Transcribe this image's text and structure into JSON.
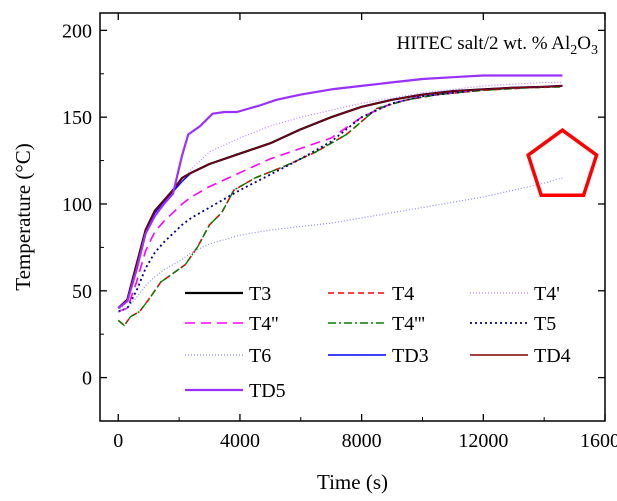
{
  "chart_data": {
    "type": "line",
    "title": "",
    "annotation": {
      "main": "HITEC salt/2 wt. % Al",
      "sub": "2",
      "mid": "O",
      "sub2": "3"
    },
    "xlabel": "Time (s)",
    "ylabel": "Temperature (°C)",
    "xlim": [
      -600,
      16000
    ],
    "ylim": [
      -25,
      210
    ],
    "xticks": [
      0,
      4000,
      8000,
      12000,
      16000
    ],
    "yticks": [
      0,
      50,
      100,
      150,
      200
    ],
    "xtick_labels": [
      "0",
      "4000",
      "8000",
      "12000",
      "16000"
    ],
    "ytick_labels": [
      "0",
      "50",
      "100",
      "150",
      "200"
    ],
    "grid": false,
    "legend_position": "bottom-left, 3 columns",
    "series": [
      {
        "name": "T3",
        "color": "#000000",
        "dash": "",
        "width": 2.2,
        "x": [
          0,
          300,
          600,
          900,
          1200,
          1500,
          1800,
          2100,
          2400,
          3000,
          4000,
          5000,
          6000,
          7000,
          8000,
          9000,
          10000,
          11000,
          12000,
          13000,
          14000,
          14600
        ],
        "y": [
          40,
          45,
          65,
          85,
          96,
          102,
          108,
          115,
          118,
          123,
          129,
          135,
          143,
          150,
          156,
          160,
          163,
          165,
          166,
          167,
          167.5,
          168
        ]
      },
      {
        "name": "T4",
        "color": "#ff0000",
        "dash": "6,4",
        "width": 1.6,
        "x": [
          0,
          200,
          400,
          700,
          1000,
          1400,
          1800,
          2200,
          2600,
          3000,
          3400,
          3800,
          4500,
          5500,
          6500,
          7500,
          8500,
          9500,
          10500,
          12000,
          13500,
          14600
        ],
        "y": [
          33,
          30,
          35,
          38,
          45,
          55,
          60,
          65,
          75,
          88,
          95,
          108,
          115,
          122,
          130,
          140,
          155,
          160,
          163,
          165.5,
          167,
          167.5
        ]
      },
      {
        "name": "T4'",
        "color": "#c080ff",
        "dash": "1,2",
        "width": 1.2,
        "x": [
          0,
          300,
          600,
          900,
          1200,
          1500,
          1800,
          2100,
          2400,
          3000,
          4000,
          5000,
          6000,
          7000,
          8000,
          9000,
          10000,
          11000,
          12000,
          13000,
          14000,
          14600
        ],
        "y": [
          38,
          44,
          64,
          84,
          95,
          101,
          107,
          113,
          120,
          130,
          138,
          145,
          150,
          154,
          158,
          161,
          164,
          166,
          168,
          169,
          170,
          170
        ]
      },
      {
        "name": "T4''",
        "color": "#ff00ff",
        "dash": "10,6",
        "width": 1.6,
        "x": [
          0,
          300,
          600,
          900,
          1200,
          1500,
          1800,
          2100,
          2400,
          3000,
          4000,
          5000,
          6000,
          7000,
          8000,
          9000,
          10000,
          11000,
          12000,
          13000,
          14000,
          14600
        ],
        "y": [
          38,
          40,
          55,
          73,
          84,
          90,
          95,
          100,
          104,
          110,
          118,
          126,
          132,
          138,
          150,
          158,
          162,
          164,
          166,
          167,
          167.5,
          168
        ]
      },
      {
        "name": "T4'''",
        "color": "#008000",
        "dash": "8,3,2,3",
        "width": 1.4,
        "x": [
          0,
          200,
          400,
          700,
          1000,
          1400,
          1800,
          2200,
          2600,
          3000,
          3400,
          3800,
          4500,
          5500,
          6500,
          7500,
          8500,
          9500,
          10500,
          12000,
          13500,
          14600
        ],
        "y": [
          33,
          30,
          35,
          38,
          45,
          55,
          60,
          65,
          75,
          88,
          95,
          108,
          115,
          122,
          130,
          140,
          155,
          160,
          163,
          165.5,
          167,
          167.5
        ]
      },
      {
        "name": "T5",
        "color": "#000080",
        "dash": "2,3",
        "width": 1.8,
        "x": [
          0,
          300,
          600,
          900,
          1200,
          1500,
          1800,
          2100,
          2400,
          3000,
          4000,
          5000,
          6000,
          7000,
          8000,
          9000,
          10000,
          11000,
          12000,
          13000,
          14000,
          14600
        ],
        "y": [
          38,
          40,
          50,
          63,
          72,
          78,
          83,
          88,
          92,
          98,
          108,
          117,
          126,
          136,
          150,
          158,
          162,
          164,
          166,
          167,
          167.5,
          168
        ]
      },
      {
        "name": "T6",
        "color": "#8a8aff",
        "dash": "1,2",
        "width": 1.2,
        "x": [
          0,
          300,
          600,
          900,
          1200,
          1500,
          1800,
          2100,
          2400,
          3000,
          4000,
          5000,
          6000,
          7000,
          8000,
          9000,
          10000,
          11000,
          12000,
          13000,
          14000,
          14600
        ],
        "y": [
          38,
          40,
          46,
          53,
          58,
          62,
          65,
          68,
          72,
          77,
          82,
          85,
          87,
          89,
          92,
          95,
          98,
          101,
          104,
          108,
          112,
          115
        ]
      },
      {
        "name": "TD3",
        "color": "#0000ff",
        "dash": "",
        "width": 1.4,
        "x": [
          0,
          300,
          600,
          900,
          1200,
          1500,
          1800,
          2100,
          2400,
          3000,
          4000,
          5000,
          6000,
          7000,
          8000,
          9000,
          10000,
          11000,
          12000,
          13000,
          14000,
          14600
        ],
        "y": [
          40,
          44,
          64,
          84,
          95,
          101,
          107,
          113,
          118,
          123,
          129,
          135,
          143,
          150,
          156,
          160,
          163,
          165,
          166,
          167,
          167.5,
          168
        ]
      },
      {
        "name": "TD4",
        "color": "#800000",
        "dash": "",
        "width": 1.4,
        "x": [
          0,
          300,
          600,
          900,
          1200,
          1500,
          1800,
          2100,
          2400,
          3000,
          4000,
          5000,
          6000,
          7000,
          8000,
          9000,
          10000,
          11000,
          12000,
          13000,
          14000,
          14600
        ],
        "y": [
          40,
          45,
          65,
          85,
          96,
          102,
          108,
          115,
          118,
          123,
          129,
          135,
          143,
          150,
          156,
          160,
          163,
          165,
          166,
          167,
          167.5,
          168
        ]
      },
      {
        "name": "TD5",
        "color": "#9a30ff",
        "dash": "",
        "width": 2.2,
        "x": [
          0,
          300,
          600,
          900,
          1200,
          1500,
          1800,
          2100,
          2300,
          2700,
          3100,
          3500,
          3900,
          4300,
          4700,
          5200,
          6000,
          7000,
          8000,
          9000,
          10000,
          11000,
          12000,
          13000,
          14000,
          14600
        ],
        "y": [
          40,
          44,
          62,
          83,
          93,
          100,
          106,
          128,
          140,
          145,
          152,
          153,
          153,
          155,
          157,
          160,
          163,
          166,
          168,
          170,
          172,
          173,
          174,
          174,
          174,
          174
        ]
      }
    ],
    "legend": [
      [
        "T3",
        "T4",
        "T4'"
      ],
      [
        "T4''",
        "T4'''",
        "T5"
      ],
      [
        "T6",
        "TD3",
        "TD4"
      ],
      [
        "TD5"
      ]
    ],
    "marker": {
      "shape": "pentagon",
      "color": "#ff0000",
      "cx_data": 14600,
      "cy_data": 116
    }
  }
}
